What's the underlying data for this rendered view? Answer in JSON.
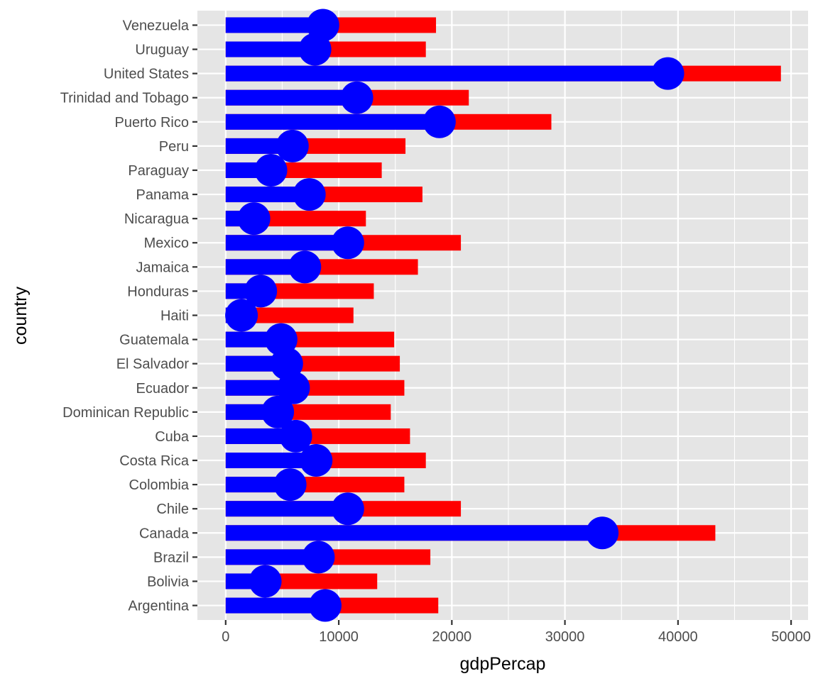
{
  "chart_data": {
    "type": "bar",
    "title": "",
    "xlabel": "gdpPercap",
    "ylabel": "country",
    "xlim": [
      -2500,
      51500
    ],
    "x_ticks": [
      0,
      10000,
      20000,
      30000,
      40000,
      50000
    ],
    "x_tick_labels": [
      "0",
      "10000",
      "20000",
      "30000",
      "40000",
      "50000"
    ],
    "grid": true,
    "legend": "none",
    "categories": [
      "Argentina",
      "Bolivia",
      "Brazil",
      "Canada",
      "Chile",
      "Colombia",
      "Costa Rica",
      "Cuba",
      "Dominican Republic",
      "Ecuador",
      "El Salvador",
      "Guatemala",
      "Haiti",
      "Honduras",
      "Jamaica",
      "Mexico",
      "Nicaragua",
      "Panama",
      "Paraguay",
      "Peru",
      "Puerto Rico",
      "Trinidad and Tobago",
      "United States",
      "Uruguay",
      "Venezuela"
    ],
    "series": [
      {
        "color": "#ff0000",
        "mark": "bar",
        "values": [
          18800,
          13400,
          18100,
          43300,
          20800,
          15800,
          17700,
          16300,
          14600,
          15800,
          15400,
          14900,
          11300,
          13100,
          17000,
          20800,
          12400,
          17400,
          13800,
          15900,
          28800,
          21500,
          49100,
          17700,
          18600
        ]
      },
      {
        "color": "#0000ff",
        "mark": "bar",
        "values": [
          8800,
          3500,
          8200,
          33300,
          10800,
          5700,
          8000,
          6200,
          4600,
          6000,
          5400,
          4900,
          1400,
          3100,
          7000,
          10800,
          2500,
          7400,
          4000,
          5900,
          18900,
          11600,
          39100,
          7900,
          8600
        ]
      },
      {
        "color": "#0000ff",
        "mark": "point",
        "values": [
          8800,
          3500,
          8200,
          33300,
          10800,
          5700,
          8000,
          6200,
          4600,
          6000,
          5400,
          4900,
          1400,
          3100,
          7000,
          10800,
          2500,
          7400,
          4000,
          5900,
          18900,
          11600,
          39100,
          7900,
          8600
        ]
      }
    ]
  },
  "colors": {
    "panel_background": "#e5e5e5",
    "grid": "#ffffff",
    "tick": "#333333"
  }
}
